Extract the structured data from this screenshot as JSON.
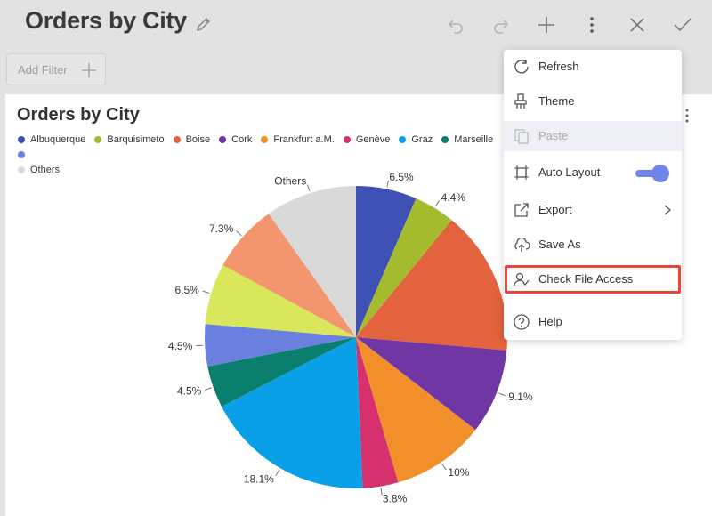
{
  "dashboard": {
    "title": "Orders by City",
    "add_filter_label": "Add Filter"
  },
  "toolbar": {
    "icons": [
      "undo-icon",
      "redo-icon",
      "plus-icon",
      "kebab-icon",
      "close-icon",
      "check-icon"
    ]
  },
  "visualization": {
    "title": "Orders by City"
  },
  "legend": [
    {
      "label": "Albuquerque",
      "color": "#3f51b5"
    },
    {
      "label": "Barquisimeto",
      "color": "#a5bb2e"
    },
    {
      "label": "Boise",
      "color": "#e3633f"
    },
    {
      "label": "Cork",
      "color": "#7036a4"
    },
    {
      "label": "Frankfurt a.M.",
      "color": "#f1902a"
    },
    {
      "label": "Genève",
      "color": "#d6316e"
    },
    {
      "label": "Graz",
      "color": "#0aa0e7"
    },
    {
      "label": "Marseille",
      "color": "#0a7f6d"
    },
    {
      "label": "Others",
      "color": "#d9d9d9"
    }
  ],
  "chart_data": {
    "type": "pie",
    "title": "Orders by City",
    "slices": [
      {
        "name": "Albuquerque",
        "value": 6.5,
        "label": "6.5%",
        "color": "#3f51b5"
      },
      {
        "name": "Barquisimeto",
        "value": 4.4,
        "label": "4.4%",
        "color": "#a5bb2e"
      },
      {
        "name": "Boise",
        "value": 15.5,
        "label": "",
        "color": "#e3633f"
      },
      {
        "name": "Cork",
        "value": 9.1,
        "label": "9.1%",
        "color": "#7036a4"
      },
      {
        "name": "Frankfurt a.M.",
        "value": 10,
        "label": "10%",
        "color": "#f1902a"
      },
      {
        "name": "Genève",
        "value": 3.8,
        "label": "3.8%",
        "color": "#d6316e"
      },
      {
        "name": "Graz",
        "value": 18.1,
        "label": "18.1%",
        "color": "#0aa0e7"
      },
      {
        "name": "Marseille",
        "value": 4.5,
        "label": "4.5%",
        "color": "#0a7f6d"
      },
      {
        "name": "",
        "value": 4.5,
        "label": "4.5%",
        "color": "#6a7fde"
      },
      {
        "name": "",
        "value": 6.5,
        "label": "6.5%",
        "color": "#d8e85a"
      },
      {
        "name": "",
        "value": 7.3,
        "label": "7.3%",
        "color": "#f3956e"
      },
      {
        "name": "Others",
        "value": 9.8,
        "label": "Others",
        "color": "#d9d9d9"
      }
    ]
  },
  "menu": {
    "items": [
      {
        "label": "Refresh",
        "icon": "refresh-icon",
        "disabled": false
      },
      {
        "label": "Theme",
        "icon": "paint-brush-icon",
        "disabled": false
      },
      {
        "label": "Paste",
        "icon": "paste-icon",
        "disabled": true
      },
      {
        "label": "Auto Layout",
        "icon": "auto-layout-icon",
        "disabled": false,
        "toggle_on": true
      },
      {
        "label": "Export",
        "icon": "export-icon",
        "disabled": false,
        "submenu": true
      },
      {
        "label": "Save As",
        "icon": "cloud-upload-icon",
        "disabled": false
      },
      {
        "label": "Check File Access",
        "icon": "user-check-icon",
        "disabled": false,
        "highlighted": true
      },
      {
        "label": "Help",
        "icon": "help-icon",
        "disabled": false
      }
    ]
  },
  "colors": {
    "accent": "#6f86e7",
    "highlight_border": "#e8453c"
  }
}
